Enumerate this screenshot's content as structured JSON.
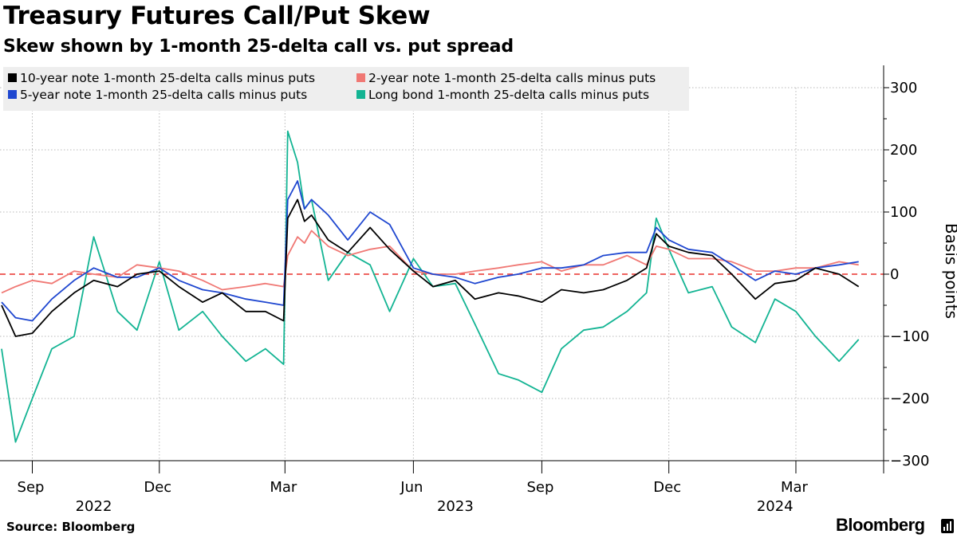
{
  "header": {
    "title": "Treasury Futures Call/Put Skew",
    "subtitle": "Skew shown by 1-month 25-delta call vs. put spread"
  },
  "footer": {
    "source": "Source: Bloomberg",
    "brand": "Bloomberg"
  },
  "colors": {
    "ten_year": "#000000",
    "two_year": "#f07874",
    "five_year": "#1f47d0",
    "long_bond": "#13b493",
    "zero_line": "#e8302c",
    "grid": "#b8b8b8",
    "legend_bg": "#eeeeee"
  },
  "chart_data": {
    "type": "line",
    "title": "Treasury Futures Call/Put Skew",
    "subtitle": "Skew shown by 1-month 25-delta call vs. put spread",
    "ylabel": "Basis points",
    "ylim": [
      -300,
      300
    ],
    "yticks": [
      300,
      200,
      100,
      0,
      -100,
      -200,
      -300
    ],
    "y_axis_side": "right",
    "grid": true,
    "zero_reference_line": "dashed",
    "legend_placement": "top-left",
    "x_month_labels": [
      "Sep",
      "Dec",
      "Mar",
      "Jun",
      "Sep",
      "Dec",
      "Mar"
    ],
    "x_month_dates": [
      "2022-09-01",
      "2022-12-01",
      "2023-03-01",
      "2023-06-01",
      "2023-09-01",
      "2023-12-01",
      "2024-03-01"
    ],
    "x_year_labels": [
      {
        "label": "2022",
        "date": "2022-10-15"
      },
      {
        "label": "2023",
        "date": "2023-07-01"
      },
      {
        "label": "2024",
        "date": "2024-02-15"
      }
    ],
    "xlim": [
      "2022-08-10",
      "2024-04-18"
    ],
    "x": [
      "2022-08-10",
      "2022-08-20",
      "2022-09-01",
      "2022-09-15",
      "2022-10-01",
      "2022-10-15",
      "2022-11-01",
      "2022-11-15",
      "2022-12-01",
      "2022-12-15",
      "2023-01-01",
      "2023-01-15",
      "2023-02-01",
      "2023-02-15",
      "2023-02-28",
      "2023-03-03",
      "2023-03-10",
      "2023-03-15",
      "2023-03-20",
      "2023-04-01",
      "2023-04-15",
      "2023-05-01",
      "2023-05-15",
      "2023-06-01",
      "2023-06-15",
      "2023-07-01",
      "2023-07-15",
      "2023-08-01",
      "2023-08-15",
      "2023-09-01",
      "2023-09-15",
      "2023-10-01",
      "2023-10-15",
      "2023-11-01",
      "2023-11-15",
      "2023-11-22",
      "2023-12-01",
      "2023-12-15",
      "2024-01-01",
      "2024-01-15",
      "2024-02-01",
      "2024-02-15",
      "2024-03-01",
      "2024-03-15",
      "2024-04-01",
      "2024-04-15"
    ],
    "series": [
      {
        "name": "10-year note 1-month 25-delta calls minus puts",
        "color_key": "ten_year",
        "values": [
          -50,
          -100,
          -95,
          -60,
          -30,
          -10,
          -20,
          0,
          5,
          -20,
          -45,
          -30,
          -60,
          -60,
          -75,
          90,
          120,
          85,
          95,
          55,
          35,
          75,
          40,
          5,
          -20,
          -10,
          -40,
          -30,
          -35,
          -45,
          -25,
          -30,
          -25,
          -10,
          10,
          65,
          45,
          35,
          30,
          0,
          -40,
          -15,
          -10,
          10,
          0,
          -20
        ]
      },
      {
        "name": "2-year note 1-month 25-delta calls minus puts",
        "color_key": "two_year",
        "values": [
          -30,
          -20,
          -10,
          -15,
          5,
          0,
          -5,
          15,
          10,
          5,
          -10,
          -25,
          -20,
          -15,
          -20,
          30,
          60,
          50,
          70,
          45,
          30,
          40,
          45,
          5,
          0,
          0,
          5,
          10,
          15,
          20,
          5,
          15,
          15,
          30,
          15,
          45,
          40,
          25,
          25,
          20,
          5,
          5,
          10,
          10,
          20,
          15
        ]
      },
      {
        "name": "5-year note 1-month 25-delta calls minus puts",
        "color_key": "five_year",
        "values": [
          -45,
          -70,
          -75,
          -40,
          -10,
          10,
          -5,
          -5,
          10,
          -10,
          -25,
          -30,
          -40,
          -45,
          -50,
          120,
          150,
          105,
          120,
          95,
          55,
          100,
          80,
          10,
          0,
          -5,
          -15,
          -5,
          0,
          10,
          10,
          15,
          30,
          35,
          35,
          75,
          55,
          40,
          35,
          15,
          -10,
          5,
          0,
          10,
          15,
          20
        ]
      },
      {
        "name": "Long bond 1-month 25-delta calls minus puts",
        "color_key": "long_bond",
        "values": [
          -120,
          -270,
          -200,
          -120,
          -100,
          60,
          -60,
          -90,
          20,
          -90,
          -60,
          -100,
          -140,
          -120,
          -145,
          230,
          180,
          105,
          120,
          -10,
          35,
          15,
          -60,
          25,
          -20,
          -15,
          -80,
          -160,
          -170,
          -190,
          -120,
          -90,
          -85,
          -60,
          -30,
          90,
          40,
          -30,
          -20,
          -85,
          -110,
          -40,
          -60,
          -100,
          -140,
          -105
        ]
      }
    ]
  }
}
